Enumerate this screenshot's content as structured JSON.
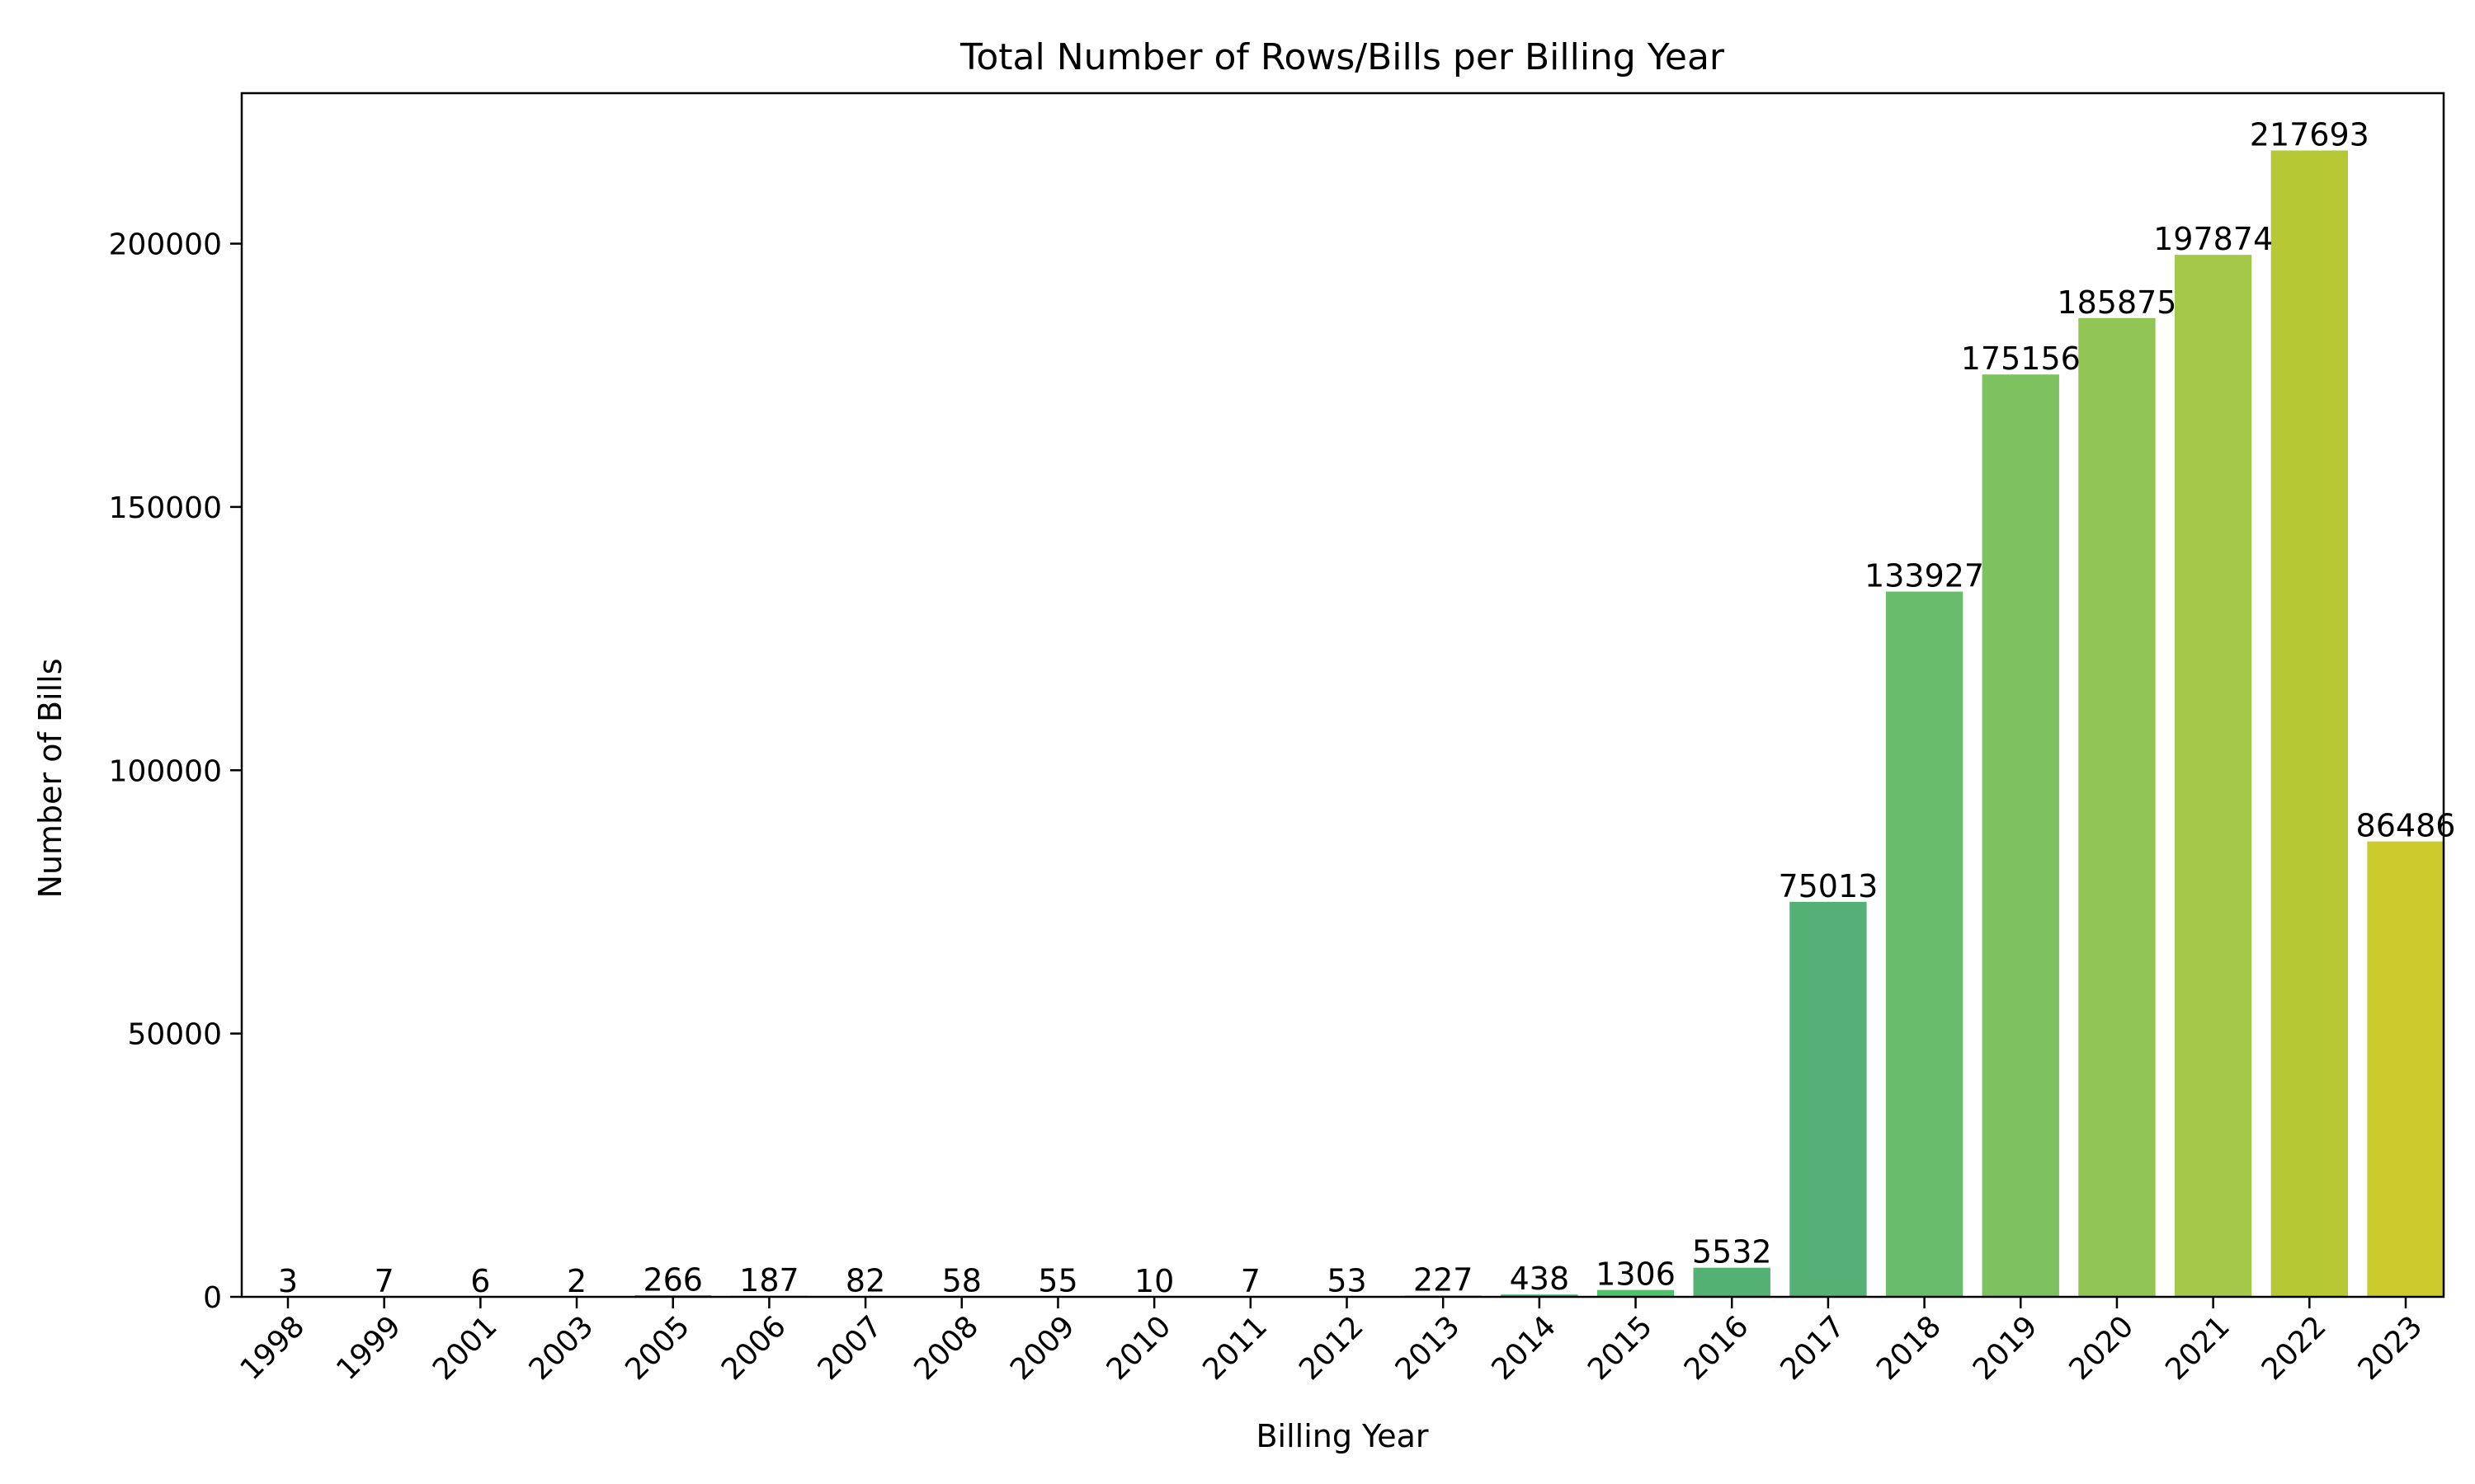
{
  "chart_data": {
    "type": "bar",
    "title": "Total Number of Rows/Bills per Billing Year",
    "xlabel": "Billing Year",
    "ylabel": "Number of Bills",
    "categories": [
      "1998",
      "1999",
      "2001",
      "2003",
      "2005",
      "2006",
      "2007",
      "2008",
      "2009",
      "2010",
      "2011",
      "2012",
      "2013",
      "2014",
      "2015",
      "2016",
      "2017",
      "2018",
      "2019",
      "2020",
      "2021",
      "2022",
      "2023"
    ],
    "values": [
      3,
      7,
      6,
      2,
      266,
      187,
      82,
      58,
      55,
      10,
      7,
      53,
      227,
      438,
      1306,
      5532,
      75013,
      133927,
      175156,
      185875,
      197874,
      217693,
      86486
    ],
    "data_labels": [
      "3",
      "7",
      "6",
      "2",
      "266",
      "187",
      "82",
      "58",
      "55",
      "10",
      "7",
      "53",
      "227",
      "438",
      "1306",
      "5532",
      "75013",
      "133927",
      "175156",
      "185875",
      "197874",
      "217693",
      "86486"
    ],
    "ylim": [
      0,
      228578
    ],
    "yticks": [
      0,
      50000,
      100000,
      150000,
      200000
    ],
    "ytick_labels": [
      "0",
      "50000",
      "100000",
      "150000",
      "200000"
    ],
    "grid": false,
    "legend": "none",
    "colors": [
      "#481d6f",
      "#472c7a",
      "#433d84",
      "#3e4c8a",
      "#38598c",
      "#33658d",
      "#2e718e",
      "#297b8e",
      "#24878e",
      "#20928c",
      "#1f9c89",
      "#23a883",
      "#2db27d",
      "#3bbc74",
      "#4ec36b",
      "#52b173",
      "#55b075",
      "#69bc6c",
      "#7ec260",
      "#90c554",
      "#a3c84a",
      "#b6c833",
      "#cbcb2d"
    ]
  }
}
